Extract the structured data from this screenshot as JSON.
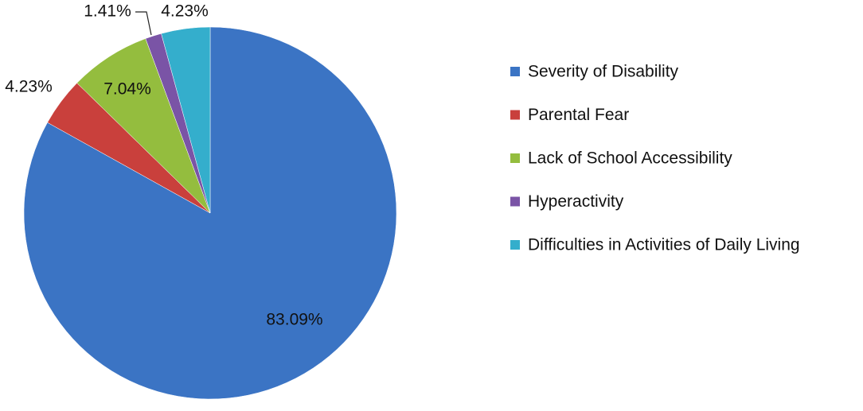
{
  "chart_data": {
    "type": "pie",
    "categories": [
      "Severity of Disability",
      "Parental Fear",
      "Lack of School Accessibility",
      "Hyperactivity",
      "Difficulties in Activities of Daily Living"
    ],
    "values": [
      83.09,
      4.23,
      7.04,
      1.41,
      4.23
    ],
    "value_labels": [
      "83.09%",
      "4.23%",
      "7.04%",
      "1.41%",
      "4.23%"
    ],
    "colors": [
      "#3b74c4",
      "#c9403c",
      "#94bd3e",
      "#7a54a6",
      "#34aecc"
    ],
    "legend": "right"
  }
}
